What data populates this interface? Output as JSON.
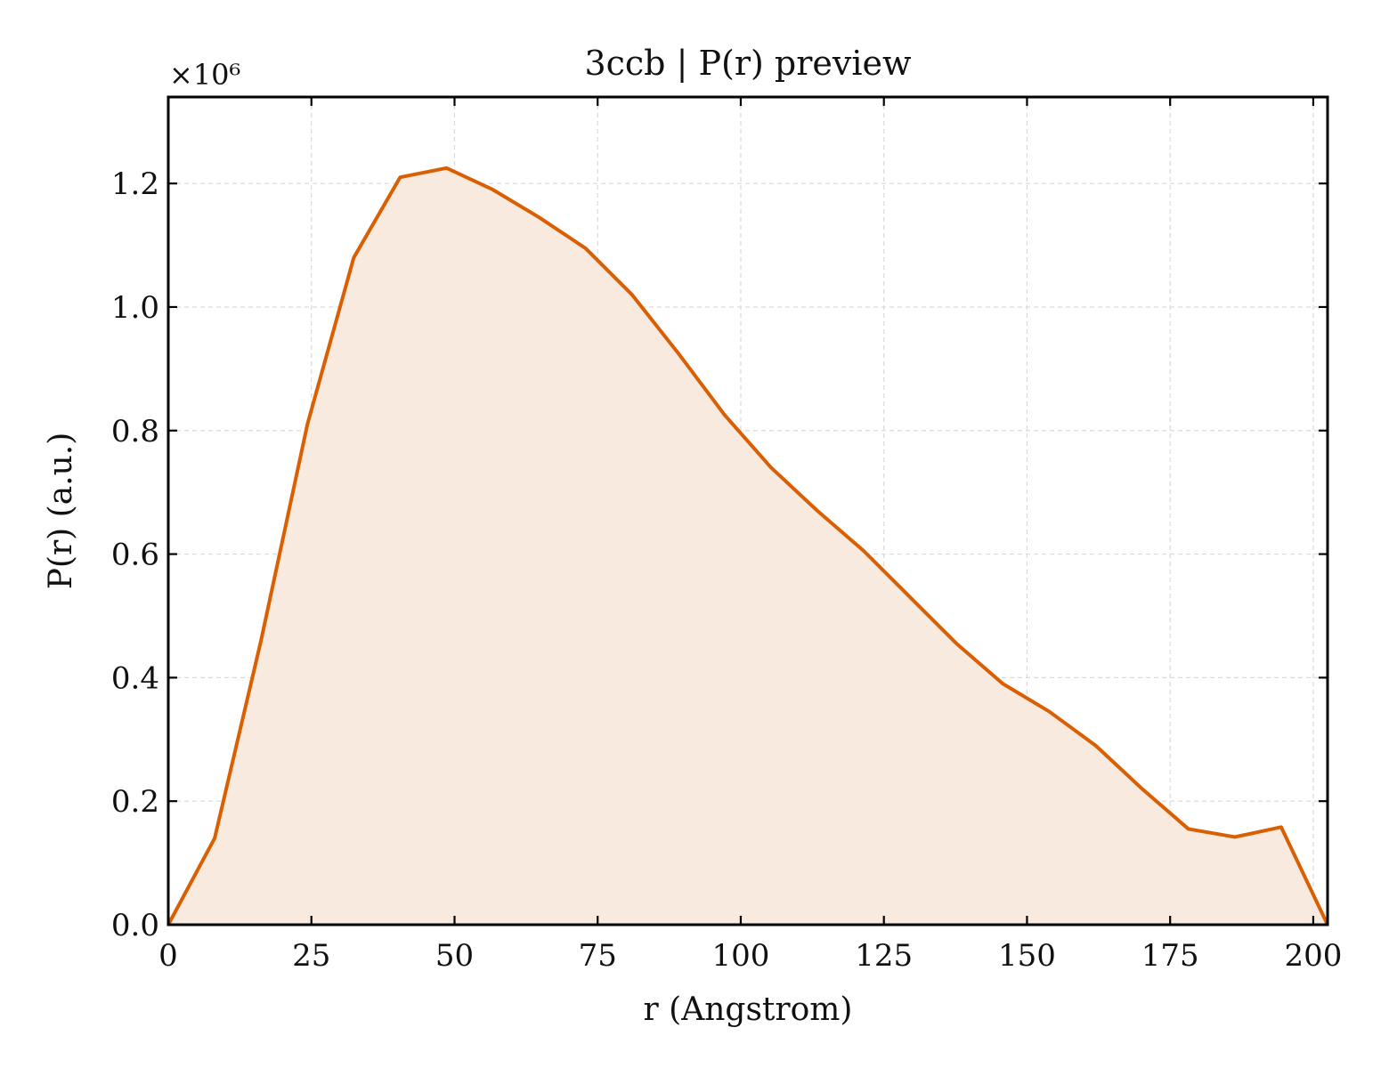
{
  "chart_data": {
    "type": "area",
    "title": "3ccb | P(r) preview",
    "xlabel": "r (Angstrom)",
    "ylabel": "P(r) (a.u.)",
    "y_multiplier_label": "×10⁶",
    "xlim": [
      0,
      202.5
    ],
    "ylim": [
      0,
      1.34
    ],
    "x_ticks": [
      0,
      25,
      50,
      75,
      100,
      125,
      150,
      175,
      200
    ],
    "y_ticks": [
      0.0,
      0.2,
      0.4,
      0.6,
      0.8,
      1.0,
      1.2
    ],
    "x_tick_labels": [
      "0",
      "25",
      "50",
      "75",
      "100",
      "125",
      "150",
      "175",
      "200"
    ],
    "y_tick_labels": [
      "0.0",
      "0.2",
      "0.4",
      "0.6",
      "0.8",
      "1.0",
      "1.2"
    ],
    "grid": true,
    "series": [
      {
        "x": [
          0,
          8.1,
          16.2,
          24.3,
          32.4,
          40.5,
          48.6,
          56.7,
          64.8,
          72.9,
          81.0,
          89.1,
          97.2,
          105.3,
          113.4,
          121.5,
          129.6,
          137.7,
          145.8,
          153.9,
          162.0,
          170.1,
          178.2,
          186.3,
          194.4,
          202.5
        ],
        "values": [
          0.0,
          0.14,
          0.46,
          0.81,
          1.08,
          1.21,
          1.225,
          1.19,
          1.145,
          1.095,
          1.02,
          0.925,
          0.825,
          0.74,
          0.67,
          0.605,
          0.53,
          0.455,
          0.39,
          0.345,
          0.29,
          0.22,
          0.155,
          0.142,
          0.158,
          0.0
        ]
      }
    ],
    "colors": {
      "line": "#d95f02",
      "fill": "#f9eadf",
      "grid": "#d9d9d9"
    }
  }
}
